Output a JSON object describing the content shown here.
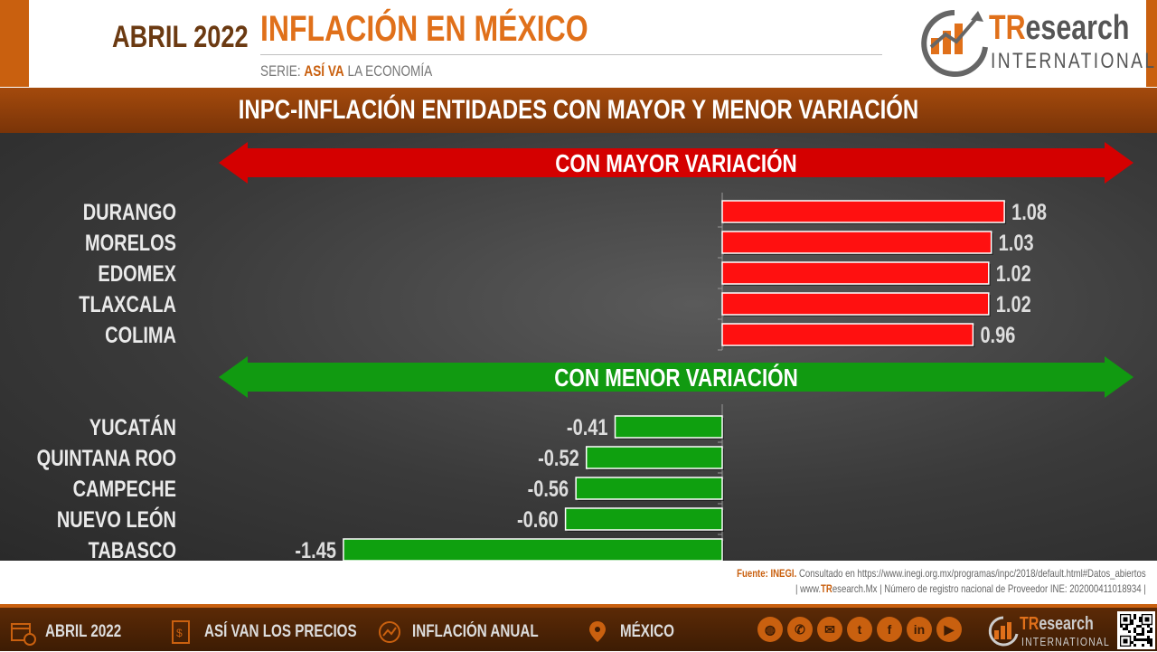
{
  "header": {
    "date": "ABRIL 2022",
    "title": "INFLACIÓN EN MÉXICO",
    "serie_prefix": "SERIE:",
    "serie_bold": "ASÍ VA",
    "serie_suffix": "LA ECONOMÍA"
  },
  "logo": {
    "tr": "TR",
    "esearch": "esearch",
    "international": "INTERNATIONAL"
  },
  "section_title": "INPC-INFLACIÓN ENTIDADES CON MAYOR Y MENOR VARIACIÓN",
  "chart_data": {
    "type": "bar",
    "orientation": "horizontal",
    "title": "INPC-INFLACIÓN ENTIDADES CON MAYOR Y MENOR VARIACIÓN",
    "groups": [
      {
        "label": "CON MAYOR VARIACIÓN",
        "color": "#ff1010",
        "categories": [
          "DURANGO",
          "MORELOS",
          "EDOMEX",
          "TLAXCALA",
          "COLIMA"
        ],
        "values": [
          1.08,
          1.03,
          1.02,
          1.02,
          0.96
        ],
        "value_labels": [
          "1.08",
          "1.03",
          "1.02",
          "1.02",
          "0.96"
        ]
      },
      {
        "label": "CON MENOR VARIACIÓN",
        "color": "#0fa00f",
        "categories": [
          "YUCATÁN",
          "QUINTANA ROO",
          "CAMPECHE",
          "NUEVO LEÓN",
          "TABASCO"
        ],
        "values": [
          -0.41,
          -0.52,
          -0.56,
          -0.6,
          -1.45
        ],
        "value_labels": [
          "-0.41",
          "-0.52",
          "-0.56",
          "-0.60",
          "-1.45"
        ]
      }
    ],
    "banner_colors": {
      "mayor": "#d40000",
      "menor": "#119a11"
    },
    "xlim": [
      -1.45,
      1.08
    ],
    "grid": false
  },
  "source": {
    "label": "Fuente: INEGI.",
    "text": "Consultado en https://www.inegi.org.mx/programas/inpc/2018/default.html#Datos_abiertos",
    "line2_prefix": "| www.",
    "line2_tr": "TR",
    "line2_rest": "esearch.Mx | Número de registro nacional de Proveedor INE: 202000411018934 |"
  },
  "footer": {
    "nav": [
      {
        "icon": "calendar-icon",
        "label": "ABRIL 2022"
      },
      {
        "icon": "price-tag-icon",
        "label": "ASÍ VAN LOS PRECIOS"
      },
      {
        "icon": "chart-icon",
        "label": "INFLACIÓN ANUAL"
      },
      {
        "icon": "map-pin-icon",
        "label": "MÉXICO"
      }
    ],
    "socials": [
      "globe-icon",
      "phone-icon",
      "mail-icon",
      "twitter-icon",
      "facebook-icon",
      "linkedin-icon",
      "youtube-icon"
    ],
    "logo_tr": "TR",
    "logo_esearch": "esearch",
    "logo_international": "INTERNATIONAL"
  }
}
